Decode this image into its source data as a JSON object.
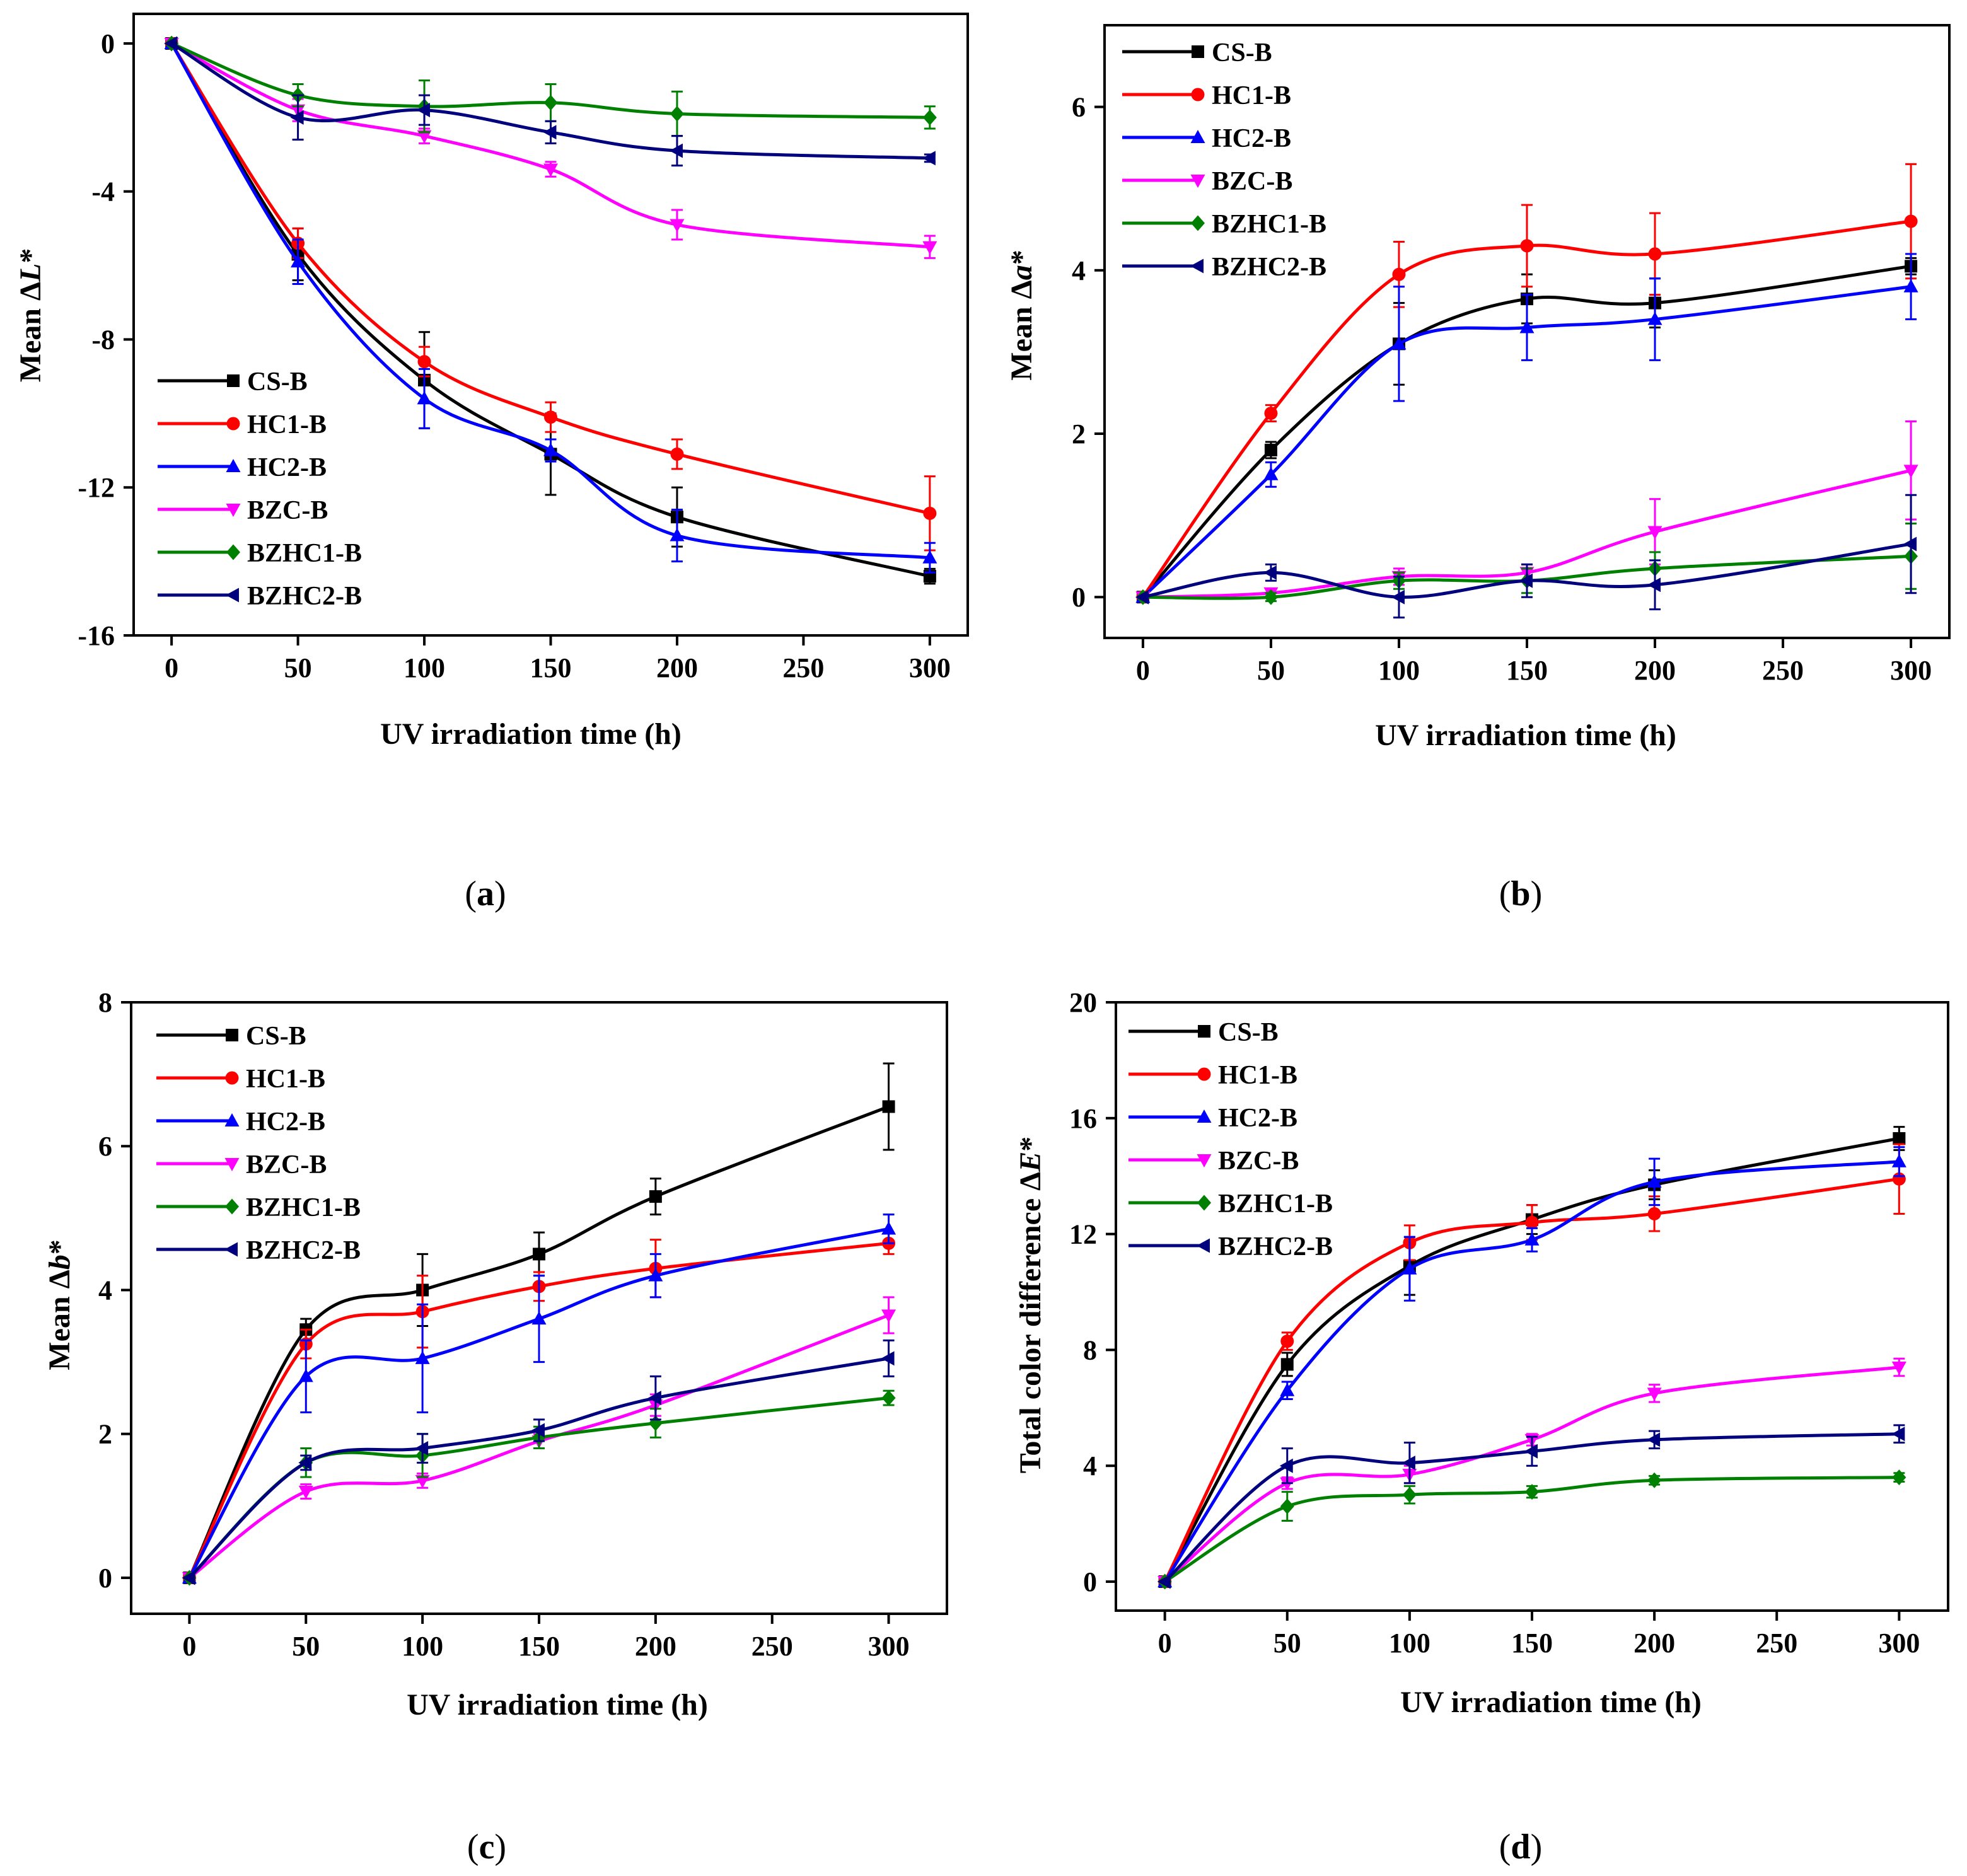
{
  "figure": {
    "panels": [
      {
        "caption_open": "(",
        "caption_letter": "a",
        "caption_close": ")"
      },
      {
        "caption_open": "(",
        "caption_letter": "b",
        "caption_close": ")"
      },
      {
        "caption_open": "(",
        "caption_letter": "c",
        "caption_close": ")"
      },
      {
        "caption_open": "(",
        "caption_letter": "d",
        "caption_close": ")"
      }
    ]
  },
  "chart_data": [
    {
      "type": "line",
      "panel": "a",
      "ylabel_prefix": "Mean Δ",
      "ylabel_var": "L",
      "ylabel_suffix": "*",
      "xlabel": "UV irradiation time (h)",
      "xlim": [
        -15,
        315
      ],
      "ylim": [
        -16,
        0.8
      ],
      "xticks": [
        0,
        50,
        100,
        150,
        200,
        250,
        300
      ],
      "yticks": [
        0,
        -4,
        -8,
        -12,
        -16
      ],
      "legend_position": "lower-left",
      "x": [
        0,
        50,
        100,
        150,
        200,
        300
      ],
      "series": [
        {
          "name": "CS-B",
          "color": "#000000",
          "marker": "square",
          "values": [
            0,
            -5.7,
            -9.1,
            -11.1,
            -12.8,
            -14.4
          ],
          "errors": [
            0,
            0.7,
            1.3,
            1.1,
            0.8,
            0.2
          ]
        },
        {
          "name": "HC1-B",
          "color": "#ff0000",
          "marker": "circle",
          "values": [
            0,
            -5.4,
            -8.6,
            -10.1,
            -11.1,
            -12.7
          ],
          "errors": [
            0,
            0.4,
            0.4,
            0.4,
            0.4,
            1.0
          ]
        },
        {
          "name": "HC2-B",
          "color": "#0000ff",
          "marker": "triangle-up",
          "values": [
            0,
            -5.9,
            -9.6,
            -11.0,
            -13.3,
            -13.9
          ],
          "errors": [
            0,
            0.6,
            0.8,
            0.3,
            0.7,
            0.4
          ]
        },
        {
          "name": "BZC-B",
          "color": "#ff00ff",
          "marker": "triangle-down",
          "values": [
            0,
            -1.8,
            -2.5,
            -3.4,
            -4.9,
            -5.5
          ],
          "errors": [
            0,
            0.3,
            0.2,
            0.2,
            0.4,
            0.3
          ]
        },
        {
          "name": "BZHC1-B",
          "color": "#008000",
          "marker": "diamond",
          "values": [
            0,
            -1.4,
            -1.7,
            -1.6,
            -1.9,
            -2.0
          ],
          "errors": [
            0,
            0.3,
            0.7,
            0.5,
            0.6,
            0.3
          ]
        },
        {
          "name": "BZHC2-B",
          "color": "#00007f",
          "marker": "triangle-left",
          "values": [
            0,
            -2.0,
            -1.8,
            -2.4,
            -2.9,
            -3.1
          ],
          "errors": [
            0,
            0.6,
            0.4,
            0.3,
            0.4,
            0.1
          ]
        }
      ]
    },
    {
      "type": "line",
      "panel": "b",
      "ylabel_prefix": "Mean Δ",
      "ylabel_var": "a",
      "ylabel_suffix": "*",
      "xlabel": "UV irradiation time (h)",
      "xlim": [
        -15,
        315
      ],
      "ylim": [
        -0.5,
        7.0
      ],
      "xticks": [
        0,
        50,
        100,
        150,
        200,
        250,
        300
      ],
      "yticks": [
        0,
        2,
        4,
        6
      ],
      "legend_position": "top-left",
      "x": [
        0,
        50,
        100,
        150,
        200,
        300
      ],
      "series": [
        {
          "name": "CS-B",
          "color": "#000000",
          "marker": "square",
          "values": [
            0,
            1.8,
            3.1,
            3.65,
            3.6,
            4.05
          ],
          "errors": [
            0,
            0.1,
            0.5,
            0.3,
            0.3,
            0.1
          ]
        },
        {
          "name": "HC1-B",
          "color": "#ff0000",
          "marker": "circle",
          "values": [
            0,
            2.25,
            3.95,
            4.3,
            4.2,
            4.6
          ],
          "errors": [
            0,
            0.1,
            0.4,
            0.5,
            0.5,
            0.7
          ]
        },
        {
          "name": "HC2-B",
          "color": "#0000ff",
          "marker": "triangle-up",
          "values": [
            0,
            1.5,
            3.1,
            3.3,
            3.4,
            3.8
          ],
          "errors": [
            0,
            0.15,
            0.7,
            0.4,
            0.5,
            0.4
          ]
        },
        {
          "name": "BZC-B",
          "color": "#ff00ff",
          "marker": "triangle-down",
          "values": [
            0,
            0.05,
            0.25,
            0.3,
            0.8,
            1.55
          ],
          "errors": [
            0,
            0.05,
            0.1,
            0.1,
            0.4,
            0.6
          ]
        },
        {
          "name": "BZHC1-B",
          "color": "#008000",
          "marker": "diamond",
          "values": [
            0,
            0.0,
            0.2,
            0.2,
            0.35,
            0.5
          ],
          "errors": [
            0,
            0.05,
            0.1,
            0.15,
            0.2,
            0.4
          ]
        },
        {
          "name": "BZHC2-B",
          "color": "#00007f",
          "marker": "triangle-left",
          "values": [
            0,
            0.3,
            0.0,
            0.2,
            0.15,
            0.65
          ],
          "errors": [
            0,
            0.1,
            0.25,
            0.2,
            0.3,
            0.6
          ]
        }
      ]
    },
    {
      "type": "line",
      "panel": "c",
      "ylabel_prefix": "Mean Δ",
      "ylabel_var": "b",
      "ylabel_suffix": "*",
      "xlabel": "UV irradiation time (h)",
      "xlim": [
        -25,
        325
      ],
      "ylim": [
        -0.5,
        8.0
      ],
      "xticks": [
        0,
        50,
        100,
        150,
        200,
        250,
        300
      ],
      "yticks": [
        0,
        2,
        4,
        6,
        8
      ],
      "legend_position": "top-left",
      "x": [
        0,
        50,
        100,
        150,
        200,
        300
      ],
      "series": [
        {
          "name": "CS-B",
          "color": "#000000",
          "marker": "square",
          "values": [
            0,
            3.45,
            4.0,
            4.5,
            5.3,
            6.55
          ],
          "errors": [
            0,
            0.15,
            0.5,
            0.3,
            0.25,
            0.6
          ]
        },
        {
          "name": "HC1-B",
          "color": "#ff0000",
          "marker": "circle",
          "values": [
            0,
            3.25,
            3.7,
            4.05,
            4.3,
            4.65
          ],
          "errors": [
            0,
            0.2,
            0.5,
            0.2,
            0.4,
            0.15
          ]
        },
        {
          "name": "HC2-B",
          "color": "#0000ff",
          "marker": "triangle-up",
          "values": [
            0,
            2.8,
            3.05,
            3.6,
            4.2,
            4.85
          ],
          "errors": [
            0,
            0.5,
            0.75,
            0.6,
            0.3,
            0.2
          ]
        },
        {
          "name": "BZC-B",
          "color": "#ff00ff",
          "marker": "triangle-down",
          "values": [
            0,
            1.2,
            1.35,
            1.9,
            2.4,
            3.65
          ],
          "errors": [
            0,
            0.1,
            0.1,
            0.1,
            0.15,
            0.25
          ]
        },
        {
          "name": "BZHC1-B",
          "color": "#008000",
          "marker": "diamond",
          "values": [
            0,
            1.6,
            1.7,
            1.95,
            2.15,
            2.5
          ],
          "errors": [
            0,
            0.2,
            0.3,
            0.15,
            0.2,
            0.1
          ]
        },
        {
          "name": "BZHC2-B",
          "color": "#00007f",
          "marker": "triangle-left",
          "values": [
            0,
            1.6,
            1.8,
            2.05,
            2.5,
            3.05
          ],
          "errors": [
            0,
            0.1,
            0.2,
            0.15,
            0.3,
            0.25
          ]
        }
      ]
    },
    {
      "type": "line",
      "panel": "d",
      "ylabel_prefix": "Total color difference Δ",
      "ylabel_var": "E",
      "ylabel_suffix": "*",
      "xlabel": "UV irradiation time (h)",
      "xlim": [
        -20,
        320
      ],
      "ylim": [
        -1,
        20
      ],
      "xticks": [
        0,
        50,
        100,
        150,
        200,
        250,
        300
      ],
      "yticks": [
        0,
        4,
        8,
        12,
        16,
        20
      ],
      "legend_position": "top-left",
      "x": [
        0,
        50,
        100,
        150,
        200,
        300
      ],
      "series": [
        {
          "name": "CS-B",
          "color": "#000000",
          "marker": "square",
          "values": [
            0,
            7.5,
            10.9,
            12.5,
            13.7,
            15.3
          ],
          "errors": [
            0,
            0.4,
            1.0,
            0.5,
            0.5,
            0.4
          ]
        },
        {
          "name": "HC1-B",
          "color": "#ff0000",
          "marker": "circle",
          "values": [
            0,
            8.3,
            11.7,
            12.4,
            12.7,
            13.9
          ],
          "errors": [
            0,
            0.3,
            0.6,
            0.6,
            0.6,
            1.2
          ]
        },
        {
          "name": "HC2-B",
          "color": "#0000ff",
          "marker": "triangle-up",
          "values": [
            0,
            6.6,
            10.8,
            11.8,
            13.8,
            14.5
          ],
          "errors": [
            0,
            0.3,
            1.1,
            0.4,
            0.8,
            0.5
          ]
        },
        {
          "name": "BZC-B",
          "color": "#ff00ff",
          "marker": "triangle-down",
          "values": [
            0,
            3.4,
            3.7,
            4.9,
            6.5,
            7.4
          ],
          "errors": [
            0,
            0.2,
            0.3,
            0.2,
            0.3,
            0.3
          ]
        },
        {
          "name": "BZHC1-B",
          "color": "#008000",
          "marker": "diamond",
          "values": [
            0,
            2.6,
            3.0,
            3.1,
            3.5,
            3.6
          ],
          "errors": [
            0,
            0.5,
            0.3,
            0.2,
            0.15,
            0.15
          ]
        },
        {
          "name": "BZHC2-B",
          "color": "#00007f",
          "marker": "triangle-left",
          "values": [
            0,
            4.0,
            4.1,
            4.5,
            4.9,
            5.1
          ],
          "errors": [
            0,
            0.6,
            0.7,
            0.5,
            0.3,
            0.3
          ]
        }
      ]
    }
  ]
}
